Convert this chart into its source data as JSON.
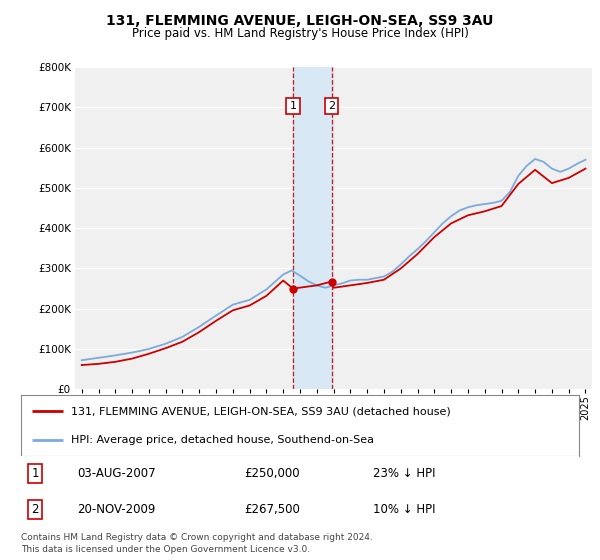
{
  "title": "131, FLEMMING AVENUE, LEIGH-ON-SEA, SS9 3AU",
  "subtitle": "Price paid vs. HM Land Registry's House Price Index (HPI)",
  "legend_line1": "131, FLEMMING AVENUE, LEIGH-ON-SEA, SS9 3AU (detached house)",
  "legend_line2": "HPI: Average price, detached house, Southend-on-Sea",
  "footer": "Contains HM Land Registry data © Crown copyright and database right 2024.\nThis data is licensed under the Open Government Licence v3.0.",
  "sale1_date": "03-AUG-2007",
  "sale1_price": "£250,000",
  "sale1_hpi": "23% ↓ HPI",
  "sale2_date": "20-NOV-2009",
  "sale2_price": "£267,500",
  "sale2_hpi": "10% ↓ HPI",
  "hpi_color": "#7aabdb",
  "price_color": "#cc0000",
  "highlight_color": "#d8e8f5",
  "sale_marker_color": "#cc0000",
  "ylim": [
    0,
    800000
  ],
  "ylabel_step": 100000,
  "background_color": "#ffffff",
  "plot_bg_color": "#f0f0f0",
  "hpi_years": [
    1995,
    1996,
    1997,
    1998,
    1999,
    2000,
    2001,
    2002,
    2003,
    2004,
    2005,
    2006,
    2007,
    2007.5,
    2008,
    2008.5,
    2009,
    2009.5,
    2010,
    2010.5,
    2011,
    2011.5,
    2012,
    2012.5,
    2013,
    2013.5,
    2014,
    2014.5,
    2015,
    2015.5,
    2016,
    2016.5,
    2017,
    2017.5,
    2018,
    2018.5,
    2019,
    2019.5,
    2020,
    2020.5,
    2021,
    2021.5,
    2022,
    2022.5,
    2023,
    2023.5,
    2024,
    2024.5,
    2025
  ],
  "hpi_values": [
    72000,
    78000,
    84000,
    91000,
    100000,
    113000,
    130000,
    155000,
    183000,
    210000,
    222000,
    248000,
    285000,
    295000,
    282000,
    268000,
    258000,
    252000,
    258000,
    263000,
    270000,
    272000,
    272000,
    276000,
    280000,
    292000,
    310000,
    330000,
    348000,
    368000,
    390000,
    412000,
    430000,
    444000,
    452000,
    457000,
    460000,
    463000,
    468000,
    490000,
    530000,
    555000,
    572000,
    565000,
    548000,
    540000,
    548000,
    560000,
    570000
  ],
  "price_years": [
    1995,
    1996,
    1997,
    1998,
    1999,
    2000,
    2001,
    2002,
    2003,
    2004,
    2005,
    2006,
    2007,
    2007.58,
    2009,
    2009.88,
    2010,
    2011,
    2012,
    2013,
    2014,
    2015,
    2016,
    2017,
    2018,
    2019,
    2020,
    2021,
    2022,
    2023,
    2024,
    2025
  ],
  "price_values": [
    60000,
    63000,
    68000,
    76000,
    88000,
    102000,
    118000,
    142000,
    170000,
    196000,
    208000,
    232000,
    270000,
    250000,
    258000,
    267500,
    252000,
    258000,
    264000,
    272000,
    300000,
    336000,
    378000,
    412000,
    432000,
    442000,
    455000,
    510000,
    545000,
    512000,
    525000,
    548000
  ],
  "sale1_x": 2007.58,
  "sale1_y": 250000,
  "sale2_x": 2009.88,
  "sale2_y": 267500,
  "highlight_x_start": 2007.58,
  "highlight_x_end": 2009.95,
  "xlim_start": 1994.6,
  "xlim_end": 2025.4,
  "xtick_years": [
    1995,
    1996,
    1997,
    1998,
    1999,
    2000,
    2001,
    2002,
    2003,
    2004,
    2005,
    2006,
    2007,
    2008,
    2009,
    2010,
    2011,
    2012,
    2013,
    2014,
    2015,
    2016,
    2017,
    2018,
    2019,
    2020,
    2021,
    2022,
    2023,
    2024,
    2025
  ]
}
